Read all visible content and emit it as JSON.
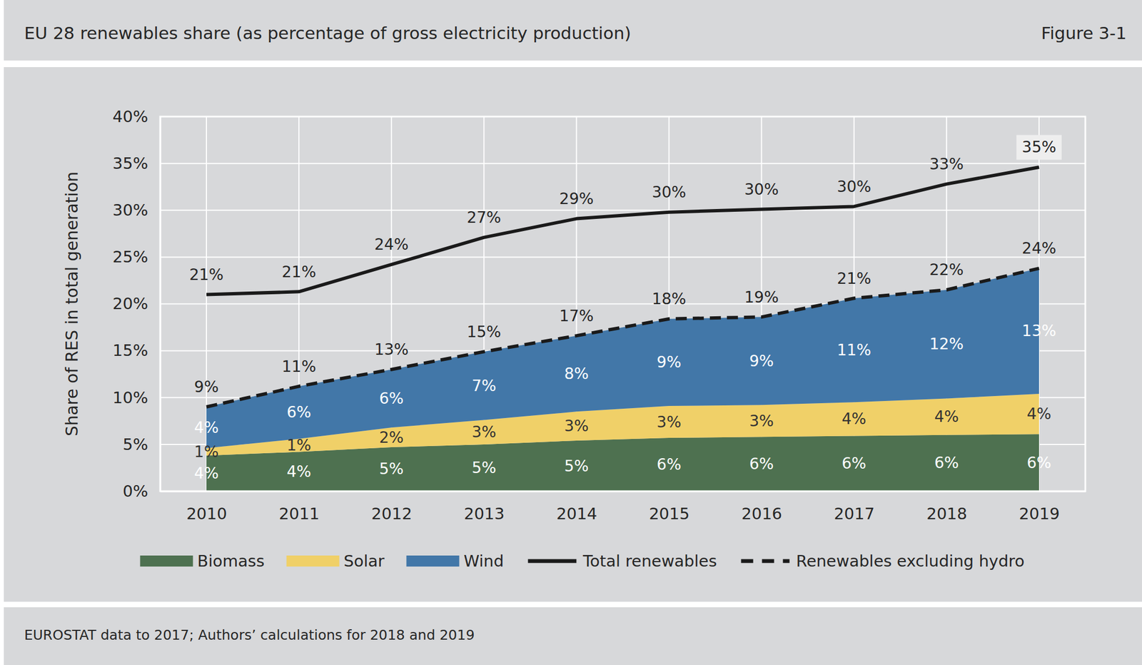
{
  "chart_data": {
    "type": "area",
    "title": "EU 28 renewables share (as percentage of gross electricity production)",
    "figure_label": "Figure 3-1",
    "source": "EUROSTAT data to 2017; Authors’ calculations for 2018 and 2019",
    "y_label": "Share of RES in total generation",
    "categories": [
      "2010",
      "2011",
      "2012",
      "2013",
      "2014",
      "2015",
      "2016",
      "2017",
      "2018",
      "2019"
    ],
    "series": [
      {
        "name": "Biomass",
        "type": "area",
        "color": "#4e7150",
        "values": [
          3.8,
          4.2,
          4.7,
          5.0,
          5.4,
          5.7,
          5.8,
          5.9,
          6.0,
          6.1
        ],
        "value_labels": [
          "4%",
          "4%",
          "5%",
          "5%",
          "5%",
          "6%",
          "6%",
          "6%",
          "6%",
          "6%"
        ]
      },
      {
        "name": "Solar",
        "type": "area",
        "color": "#f0d068",
        "values": [
          0.8,
          1.4,
          2.1,
          2.6,
          3.1,
          3.4,
          3.4,
          3.6,
          3.9,
          4.3
        ],
        "value_labels": [
          "1%",
          "1%",
          "2%",
          "3%",
          "3%",
          "3%",
          "3%",
          "4%",
          "4%",
          "4%"
        ]
      },
      {
        "name": "Wind",
        "type": "area",
        "color": "#4277a8",
        "values": [
          4.4,
          5.6,
          6.2,
          7.3,
          8.1,
          9.3,
          9.4,
          11.1,
          11.6,
          13.4
        ],
        "value_labels": [
          "4%",
          "6%",
          "6%",
          "7%",
          "8%",
          "9%",
          "9%",
          "11%",
          "12%",
          "13%"
        ]
      },
      {
        "name": "Total renewables",
        "type": "line",
        "line_style": "solid",
        "color": "#1a1a1a",
        "values": [
          21.0,
          21.3,
          24.2,
          27.1,
          29.1,
          29.8,
          30.1,
          30.4,
          32.8,
          34.6
        ],
        "value_labels": [
          "21%",
          "21%",
          "24%",
          "27%",
          "29%",
          "30%",
          "30%",
          "30%",
          "33%",
          "35%"
        ]
      },
      {
        "name": "Renewables excluding hydro",
        "type": "line",
        "line_style": "dashed",
        "color": "#1a1a1a",
        "values": [
          9.0,
          11.2,
          13.0,
          14.9,
          16.6,
          18.4,
          18.6,
          20.6,
          21.5,
          23.8
        ],
        "value_labels": [
          "9%",
          "11%",
          "13%",
          "15%",
          "17%",
          "18%",
          "19%",
          "21%",
          "22%",
          "24%"
        ]
      }
    ],
    "ylim": [
      0,
      40
    ],
    "yticks": [
      {
        "value": 0,
        "label": "0%"
      },
      {
        "value": 5,
        "label": "5%"
      },
      {
        "value": 10,
        "label": "10%"
      },
      {
        "value": 15,
        "label": "15%"
      },
      {
        "value": 20,
        "label": "20%"
      },
      {
        "value": 25,
        "label": "25%"
      },
      {
        "value": 30,
        "label": "30%"
      },
      {
        "value": 35,
        "label": "35%"
      },
      {
        "value": 40,
        "label": "40%"
      }
    ],
    "stacked": true,
    "grid": true,
    "data_labels": true,
    "legend": "bottom"
  }
}
